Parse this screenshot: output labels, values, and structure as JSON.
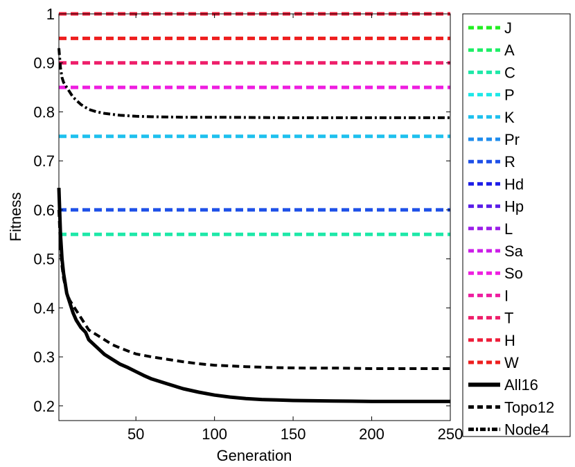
{
  "chart_data": {
    "type": "line",
    "xlabel": "Generation",
    "ylabel": "Fitness",
    "xlim": [
      1,
      250
    ],
    "ylim": [
      0.17,
      1.0
    ],
    "xticks": [
      50,
      100,
      150,
      200,
      250
    ],
    "yticks": [
      0.2,
      0.3,
      0.4,
      0.5,
      0.6,
      0.7,
      0.8,
      0.9,
      1.0
    ],
    "xtick_labels": [
      "50",
      "100",
      "150",
      "200",
      "250"
    ],
    "ytick_labels": [
      "0.2",
      "0.3",
      "0.4",
      "0.5",
      "0.6",
      "0.7",
      "0.8",
      "0.9",
      "1"
    ],
    "grid": false,
    "legend_position": "outside-right",
    "constant_series": [
      {
        "name": "J",
        "value": 1.0,
        "color": "#22ee22"
      },
      {
        "name": "A",
        "value": 1.0,
        "color": "#1eee66"
      },
      {
        "name": "C",
        "value": 0.55,
        "color": "#1ee8a8"
      },
      {
        "name": "P",
        "value": 1.0,
        "color": "#1ee8e8"
      },
      {
        "name": "K",
        "value": 0.75,
        "color": "#1ec0ee"
      },
      {
        "name": "Pr",
        "value": 1.0,
        "color": "#1e8cee"
      },
      {
        "name": "R",
        "value": 0.6,
        "color": "#1e50e8"
      },
      {
        "name": "Hd",
        "value": 1.0,
        "color": "#1e1ee8"
      },
      {
        "name": "Hp",
        "value": 1.0,
        "color": "#5a1ee8"
      },
      {
        "name": "L",
        "value": 1.0,
        "color": "#9a1ee8"
      },
      {
        "name": "Sa",
        "value": 1.0,
        "color": "#cc1ee8"
      },
      {
        "name": "So",
        "value": 0.85,
        "color": "#ee1ee0"
      },
      {
        "name": "I",
        "value": 1.0,
        "color": "#ee1ea0"
      },
      {
        "name": "T",
        "value": 0.9,
        "color": "#ee1e6a"
      },
      {
        "name": "H",
        "value": 1.0,
        "color": "#ee1e3a"
      },
      {
        "name": "W",
        "value": 0.95,
        "color": "#ee1e1e"
      }
    ],
    "series": [
      {
        "name": "All16",
        "style": "solid",
        "color": "#000000",
        "x": [
          1,
          2,
          3,
          4,
          5,
          6,
          8,
          10,
          12,
          15,
          18,
          20,
          25,
          30,
          35,
          40,
          45,
          50,
          55,
          60,
          70,
          80,
          90,
          100,
          110,
          120,
          130,
          140,
          150,
          175,
          200,
          225,
          250
        ],
        "y": [
          0.645,
          0.55,
          0.5,
          0.47,
          0.45,
          0.43,
          0.41,
          0.39,
          0.375,
          0.36,
          0.35,
          0.335,
          0.32,
          0.305,
          0.295,
          0.285,
          0.278,
          0.27,
          0.262,
          0.255,
          0.245,
          0.235,
          0.228,
          0.222,
          0.218,
          0.215,
          0.213,
          0.212,
          0.211,
          0.21,
          0.209,
          0.209,
          0.209
        ]
      },
      {
        "name": "Topo12",
        "style": "dashed",
        "color": "#000000",
        "x": [
          1,
          2,
          3,
          4,
          5,
          6,
          8,
          10,
          12,
          15,
          18,
          20,
          25,
          30,
          35,
          40,
          45,
          50,
          60,
          70,
          80,
          90,
          100,
          120,
          140,
          160,
          180,
          200,
          225,
          250
        ],
        "y": [
          0.6,
          0.52,
          0.485,
          0.46,
          0.445,
          0.43,
          0.415,
          0.405,
          0.395,
          0.38,
          0.365,
          0.355,
          0.345,
          0.335,
          0.325,
          0.318,
          0.312,
          0.306,
          0.3,
          0.295,
          0.29,
          0.286,
          0.283,
          0.28,
          0.278,
          0.277,
          0.277,
          0.276,
          0.276,
          0.276
        ]
      },
      {
        "name": "Node4",
        "style": "dashdot",
        "color": "#000000",
        "x": [
          1,
          2,
          3,
          4,
          6,
          8,
          10,
          15,
          20,
          25,
          30,
          40,
          50,
          60,
          80,
          100,
          150,
          200,
          250
        ],
        "y": [
          0.93,
          0.89,
          0.87,
          0.86,
          0.85,
          0.84,
          0.83,
          0.815,
          0.805,
          0.8,
          0.797,
          0.793,
          0.791,
          0.79,
          0.789,
          0.789,
          0.788,
          0.788,
          0.788
        ]
      }
    ],
    "legend_order": [
      "J",
      "A",
      "C",
      "P",
      "K",
      "Pr",
      "R",
      "Hd",
      "Hp",
      "L",
      "Sa",
      "So",
      "I",
      "T",
      "H",
      "W",
      "All16",
      "Topo12",
      "Node4"
    ]
  }
}
